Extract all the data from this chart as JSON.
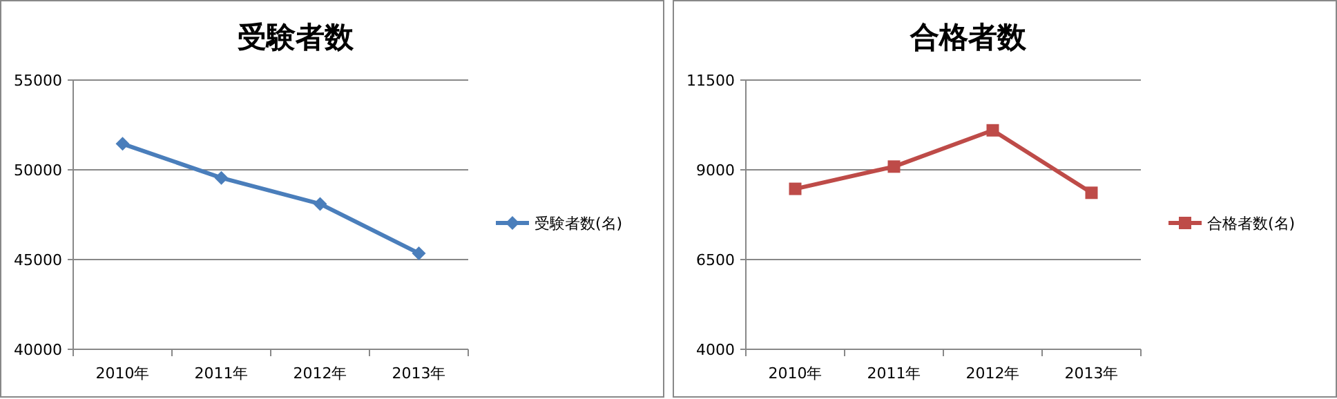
{
  "chart_data": [
    {
      "type": "line",
      "title": "受験者数",
      "categories": [
        "2010年",
        "2011年",
        "2012年",
        "2013年"
      ],
      "series": [
        {
          "name": "受験者数(名)",
          "color": "#4a7ebb",
          "values": [
            51450,
            49550,
            48100,
            45350
          ]
        }
      ],
      "ylim": [
        40000,
        55000
      ],
      "yticks": [
        40000,
        45000,
        50000,
        55000
      ],
      "grid": "y",
      "legend": "right",
      "marker": "diamond"
    },
    {
      "type": "line",
      "title": "合格者数",
      "categories": [
        "2010年",
        "2011年",
        "2012年",
        "2013年"
      ],
      "series": [
        {
          "name": "合格者数(名)",
          "color": "#be4b48",
          "values": [
            8470,
            9090,
            10100,
            8360
          ]
        }
      ],
      "ylim": [
        4000,
        11500
      ],
      "yticks": [
        4000,
        6500,
        9000,
        11500
      ],
      "grid": "y",
      "legend": "right",
      "marker": "square"
    }
  ]
}
